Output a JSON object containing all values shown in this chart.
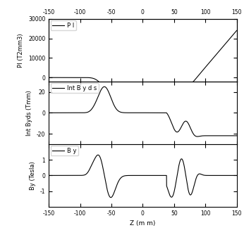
{
  "xlabel": "Z (m m)",
  "subplot_ylabels": [
    "PI (T2mm3)",
    "Int Byds (Tmm)",
    "By (Tesla)"
  ],
  "xlim": [
    -150,
    150
  ],
  "xticks": [
    -150,
    -100,
    -50,
    0,
    50,
    100,
    150
  ],
  "pi_ylim": [
    -2000,
    30000
  ],
  "pi_yticks": [
    0,
    10000,
    20000,
    30000
  ],
  "int_ylim": [
    -30,
    30
  ],
  "int_yticks": [
    -20,
    0,
    20
  ],
  "by_ylim": [
    -2,
    2
  ],
  "by_yticks": [
    -1,
    0,
    1
  ],
  "line_color": "#000000",
  "legend_labels": [
    "P I",
    "Int B y d s",
    "B y"
  ],
  "figsize": [
    3.46,
    3.34
  ],
  "dpi": 100
}
